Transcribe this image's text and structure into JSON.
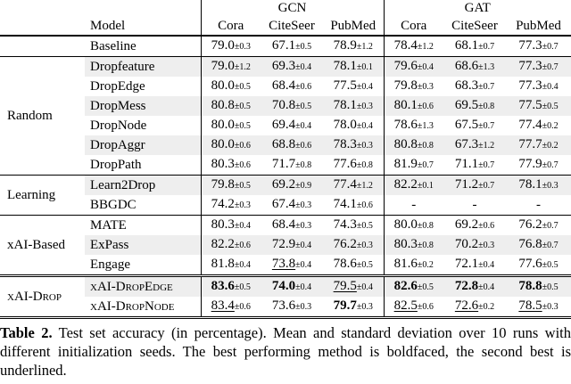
{
  "table": {
    "col_groups": [
      "GCN",
      "GAT"
    ],
    "model_header": "Model",
    "sub_headers": [
      "Cora",
      "CiteSeer",
      "PubMed",
      "Cora",
      "CiteSeer",
      "PubMed"
    ],
    "sections": [
      {
        "group": "",
        "rows": [
          {
            "model": "Baseline",
            "shaded": false,
            "values": [
              {
                "m": "79.0",
                "s": "±0.3"
              },
              {
                "m": "67.1",
                "s": "±0.5"
              },
              {
                "m": "78.9",
                "s": "±1.2"
              },
              {
                "m": "78.4",
                "s": "±1.2"
              },
              {
                "m": "68.1",
                "s": "±0.7"
              },
              {
                "m": "77.3",
                "s": "±0.7"
              }
            ]
          }
        ]
      },
      {
        "group": "Random",
        "rows": [
          {
            "model": "Dropfeature",
            "shaded": true,
            "values": [
              {
                "m": "79.0",
                "s": "±1.2"
              },
              {
                "m": "69.3",
                "s": "±0.4"
              },
              {
                "m": "78.1",
                "s": "±0.1"
              },
              {
                "m": "79.6",
                "s": "±0.4"
              },
              {
                "m": "68.6",
                "s": "±1.3"
              },
              {
                "m": "77.3",
                "s": "±0.7"
              }
            ]
          },
          {
            "model": "DropEdge",
            "shaded": false,
            "values": [
              {
                "m": "80.0",
                "s": "±0.5"
              },
              {
                "m": "68.4",
                "s": "±0.6"
              },
              {
                "m": "77.5",
                "s": "±0.4"
              },
              {
                "m": "79.8",
                "s": "±0.3"
              },
              {
                "m": "68.3",
                "s": "±0.7"
              },
              {
                "m": "77.3",
                "s": "±0.4"
              }
            ]
          },
          {
            "model": "DropMess",
            "shaded": true,
            "values": [
              {
                "m": "80.8",
                "s": "±0.5"
              },
              {
                "m": "70.8",
                "s": "±0.5"
              },
              {
                "m": "78.1",
                "s": "±0.3"
              },
              {
                "m": "80.1",
                "s": "±0.6"
              },
              {
                "m": "69.5",
                "s": "±0.8"
              },
              {
                "m": "77.5",
                "s": "±0.5"
              }
            ]
          },
          {
            "model": "DropNode",
            "shaded": false,
            "values": [
              {
                "m": "80.0",
                "s": "±0.5"
              },
              {
                "m": "69.4",
                "s": "±0.4"
              },
              {
                "m": "78.0",
                "s": "±0.4"
              },
              {
                "m": "78.6",
                "s": "±1.3"
              },
              {
                "m": "67.5",
                "s": "±0.7"
              },
              {
                "m": "77.4",
                "s": "±0.2"
              }
            ]
          },
          {
            "model": "DropAggr",
            "shaded": true,
            "values": [
              {
                "m": "80.0",
                "s": "±0.6"
              },
              {
                "m": "68.8",
                "s": "±0.6"
              },
              {
                "m": "78.3",
                "s": "±0.3"
              },
              {
                "m": "80.8",
                "s": "±0.8"
              },
              {
                "m": "67.3",
                "s": "±1.2"
              },
              {
                "m": "77.7",
                "s": "±0.2"
              }
            ]
          },
          {
            "model": "DropPath",
            "shaded": false,
            "values": [
              {
                "m": "80.3",
                "s": "±0.6"
              },
              {
                "m": "71.7",
                "s": "±0.8"
              },
              {
                "m": "77.6",
                "s": "±0.8"
              },
              {
                "m": "81.9",
                "s": "±0.7"
              },
              {
                "m": "71.1",
                "s": "±0.7"
              },
              {
                "m": "77.9",
                "s": "±0.7"
              }
            ]
          }
        ]
      },
      {
        "group": "Learning",
        "rows": [
          {
            "model": "Learn2Drop",
            "shaded": true,
            "values": [
              {
                "m": "79.8",
                "s": "±0.5"
              },
              {
                "m": "69.2",
                "s": "±0.9"
              },
              {
                "m": "77.4",
                "s": "±1.2"
              },
              {
                "m": "82.2",
                "s": "±0.1"
              },
              {
                "m": "71.2",
                "s": "±0.7"
              },
              {
                "m": "78.1",
                "s": "±0.3"
              }
            ]
          },
          {
            "model": "BBGDC",
            "shaded": false,
            "values": [
              {
                "m": "74.2",
                "s": "±0.3"
              },
              {
                "m": "67.4",
                "s": "±0.3"
              },
              {
                "m": "74.1",
                "s": "±0.6"
              },
              {
                "m": "-",
                "s": ""
              },
              {
                "m": "-",
                "s": ""
              },
              {
                "m": "-",
                "s": ""
              }
            ]
          }
        ]
      },
      {
        "group": "xAI-Based",
        "rows": [
          {
            "model": "MATE",
            "shaded": false,
            "values": [
              {
                "m": "80.3",
                "s": "±0.4"
              },
              {
                "m": "68.4",
                "s": "±0.3"
              },
              {
                "m": "74.3",
                "s": "±0.5"
              },
              {
                "m": "80.0",
                "s": "±0.8"
              },
              {
                "m": "69.2",
                "s": "±0.6"
              },
              {
                "m": "76.2",
                "s": "±0.7"
              }
            ]
          },
          {
            "model": "ExPass",
            "shaded": true,
            "values": [
              {
                "m": "82.2",
                "s": "±0.6"
              },
              {
                "m": "72.9",
                "s": "±0.4"
              },
              {
                "m": "76.2",
                "s": "±0.3"
              },
              {
                "m": "80.3",
                "s": "±0.8"
              },
              {
                "m": "70.2",
                "s": "±0.3"
              },
              {
                "m": "76.8",
                "s": "±0.7"
              }
            ]
          },
          {
            "model": "Engage",
            "shaded": false,
            "values": [
              {
                "m": "81.8",
                "s": "±0.4"
              },
              {
                "m": "73.8",
                "s": "±0.4",
                "style": "u"
              },
              {
                "m": "78.6",
                "s": "±0.5"
              },
              {
                "m": "81.6",
                "s": "±0.2"
              },
              {
                "m": "72.1",
                "s": "±0.4"
              },
              {
                "m": "77.6",
                "s": "±0.5"
              }
            ]
          }
        ]
      },
      {
        "group": "xAI-Drop",
        "smallcaps": true,
        "double_rule": true,
        "rows": [
          {
            "model": "xAI-DropEdge",
            "shaded": true,
            "values": [
              {
                "m": "83.6",
                "s": "±0.5",
                "style": "b"
              },
              {
                "m": "74.0",
                "s": "±0.4",
                "style": "b"
              },
              {
                "m": "79.5",
                "s": "±0.4",
                "style": "u"
              },
              {
                "m": "82.6",
                "s": "±0.5",
                "style": "b"
              },
              {
                "m": "72.8",
                "s": "±0.4",
                "style": "b"
              },
              {
                "m": "78.8",
                "s": "±0.5",
                "style": "b"
              }
            ]
          },
          {
            "model": "xAI-DropNode",
            "shaded": false,
            "values": [
              {
                "m": "83.4",
                "s": "±0.6",
                "style": "u"
              },
              {
                "m": "73.6",
                "s": "±0.3"
              },
              {
                "m": "79.7",
                "s": "±0.3",
                "style": "b"
              },
              {
                "m": "82.5",
                "s": "±0.6",
                "style": "u"
              },
              {
                "m": "72.6",
                "s": "±0.2",
                "style": "u"
              },
              {
                "m": "78.5",
                "s": "±0.3",
                "style": "u"
              }
            ]
          }
        ]
      }
    ]
  },
  "caption": {
    "label": "Table 2.",
    "text": " Test set accuracy (in percentage). Mean and standard deviation over 10 runs with different initialization seeds. The best performing method is boldfaced, the second best is underlined."
  },
  "colors": {
    "row_shade": "#eeeeee",
    "rule": "#000000",
    "text": "#000000"
  }
}
